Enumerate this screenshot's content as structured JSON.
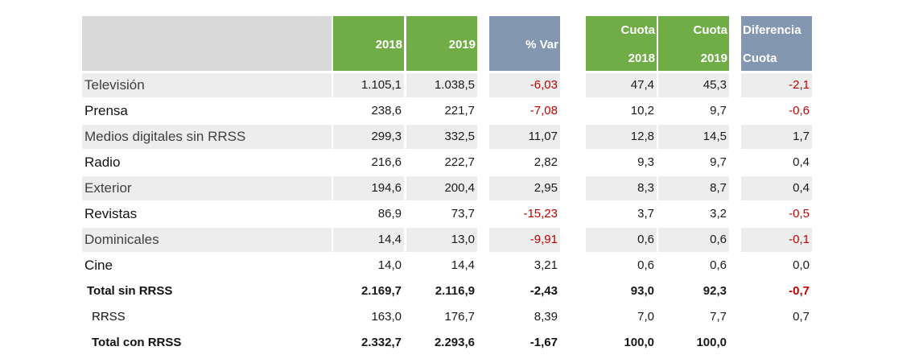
{
  "chart_data": {
    "type": "table",
    "columns": [
      "",
      "2018",
      "2019",
      "% Var",
      "Cuota 2018",
      "Cuota 2019",
      "Diferencia Cuota"
    ],
    "headers": {
      "y2018": "2018",
      "y2019": "2019",
      "var": "% Var",
      "cuota_line1": "Cuota",
      "cuota2018": "2018",
      "cuota2019": "2019",
      "diff_line1": "Diferencia",
      "diff_line2": "Cuota"
    },
    "rows": [
      {
        "label": "Televisión",
        "v2018": "1.105,1",
        "v2019": "1.038,5",
        "var": "-6,03",
        "c2018": "47,4",
        "c2019": "45,3",
        "diff": "-2,1"
      },
      {
        "label": "Prensa",
        "v2018": "238,6",
        "v2019": "221,7",
        "var": "-7,08",
        "c2018": "10,2",
        "c2019": "9,7",
        "diff": "-0,6"
      },
      {
        "label": "Medios digitales sin RRSS",
        "v2018": "299,3",
        "v2019": "332,5",
        "var": "11,07",
        "c2018": "12,8",
        "c2019": "14,5",
        "diff": "1,7"
      },
      {
        "label": "Radio",
        "v2018": "216,6",
        "v2019": "222,7",
        "var": "2,82",
        "c2018": "9,3",
        "c2019": "9,7",
        "diff": "0,4"
      },
      {
        "label": "Exterior",
        "v2018": "194,6",
        "v2019": "200,4",
        "var": "2,95",
        "c2018": "8,3",
        "c2019": "8,7",
        "diff": "0,4"
      },
      {
        "label": "Revistas",
        "v2018": "86,9",
        "v2019": "73,7",
        "var": "-15,23",
        "c2018": "3,7",
        "c2019": "3,2",
        "diff": "-0,5"
      },
      {
        "label": "Dominicales",
        "v2018": "14,4",
        "v2019": "13,0",
        "var": "-9,91",
        "c2018": "0,6",
        "c2019": "0,6",
        "diff": "-0,1"
      },
      {
        "label": "Cine",
        "v2018": "14,0",
        "v2019": "14,4",
        "var": "3,21",
        "c2018": "0,6",
        "c2019": "0,6",
        "diff": "0,0"
      },
      {
        "label": "Total sin RRSS",
        "v2018": "2.169,7",
        "v2019": "2.116,9",
        "var": "-2,43",
        "c2018": "93,0",
        "c2019": "92,3",
        "diff": "-0,7",
        "style": "total"
      },
      {
        "label": "RRSS",
        "v2018": "163,0",
        "v2019": "176,7",
        "var": "8,39",
        "c2018": "7,0",
        "c2019": "7,7",
        "diff": "0,7",
        "style": "sub"
      },
      {
        "label": "Total con RRSS",
        "v2018": "2.332,7",
        "v2019": "2.293,6",
        "var": "-1,67",
        "c2018": "100,0",
        "c2019": "100,0",
        "diff": "",
        "style": "total"
      }
    ],
    "colors": {
      "header_green": "#70ad47",
      "header_blue": "#8497b0",
      "header_gray": "#d9d9d9",
      "stripe": "#ededed",
      "negative": "#c00000"
    }
  }
}
